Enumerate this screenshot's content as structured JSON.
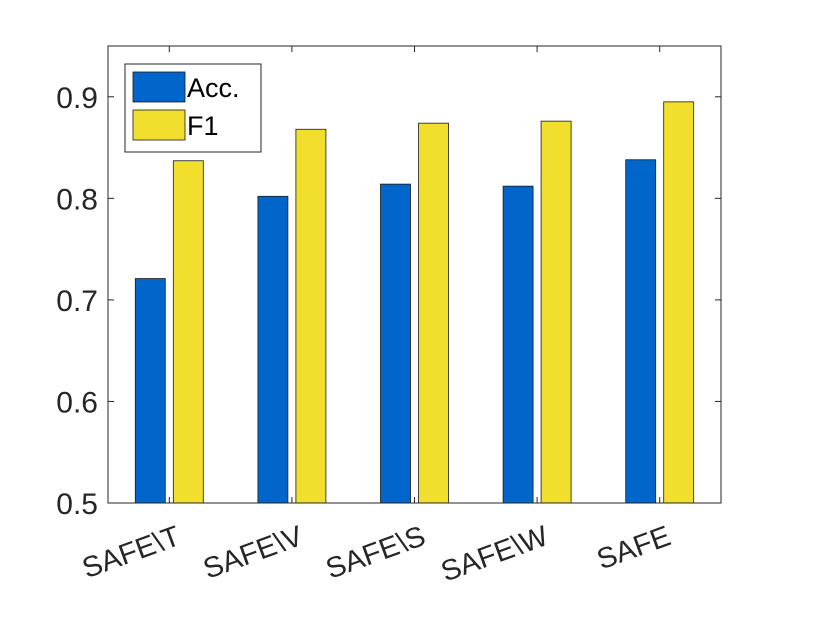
{
  "chart_data": {
    "type": "bar",
    "title": "",
    "xlabel": "",
    "ylabel": "",
    "categories": [
      "SAFE\\T",
      "SAFE\\V",
      "SAFE\\S",
      "SAFE\\W",
      "SAFE"
    ],
    "series": [
      {
        "name": "Acc.",
        "color": "#0066cc",
        "values": [
          0.721,
          0.802,
          0.814,
          0.812,
          0.838
        ]
      },
      {
        "name": "F1",
        "color": "#f2de2c",
        "values": [
          0.837,
          0.868,
          0.874,
          0.876,
          0.895
        ]
      }
    ],
    "ylim": [
      0.5,
      0.95
    ],
    "yticks": [
      0.5,
      0.6,
      0.7,
      0.8,
      0.9
    ],
    "ytick_labels": [
      "0.5",
      "0.6",
      "0.7",
      "0.8",
      "0.9"
    ],
    "grid": false,
    "legend_position": "top-left"
  }
}
